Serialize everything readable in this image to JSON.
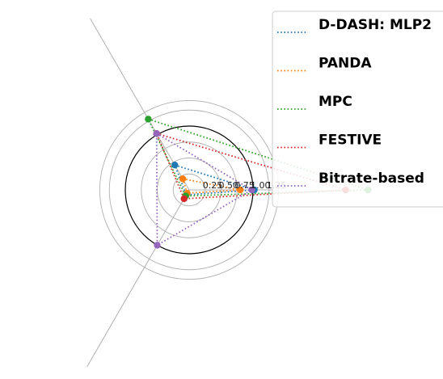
{
  "chart_data": {
    "type": "radar",
    "title": "",
    "axes": [
      "",
      "",
      ""
    ],
    "radial_ticks": [
      "0.25",
      "0.50",
      "0.75",
      "1.00",
      "1.25"
    ],
    "radial_tick_values": [
      0.25,
      0.5,
      0.75,
      1.0,
      1.25
    ],
    "r_max": 1.4,
    "reference_circle": 1.0,
    "grid": true,
    "legend_position": "top-right",
    "series": [
      {
        "name": "D-DASH: MLP2",
        "color": "#1f77b4",
        "values": [
          0.45,
          1.02,
          0.09
        ]
      },
      {
        "name": "PANDA",
        "color": "#ff7f0e",
        "values": [
          0.2,
          0.8,
          0.06
        ]
      },
      {
        "name": "MPC",
        "color": "#2ca02c",
        "values": [
          1.28,
          2.8,
          0.11
        ]
      },
      {
        "name": "FESTIVE",
        "color": "#d62728",
        "values": [
          1.02,
          2.45,
          0.16
        ]
      },
      {
        "name": "Bitrate-based",
        "color": "#9467bd",
        "values": [
          1.02,
          0.98,
          1.0
        ]
      }
    ]
  }
}
